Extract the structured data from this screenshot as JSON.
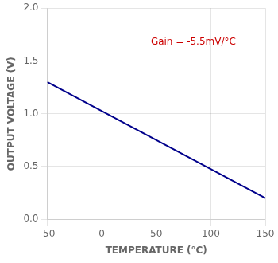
{
  "chart_data": {
    "type": "line",
    "x": [
      -50,
      150
    ],
    "values": [
      1.3,
      0.2
    ],
    "color": "#00008B",
    "xlabel": "TEMPERATURE (°C)",
    "ylabel": "OUTPUT VOLTAGE (V)",
    "xlim": [
      -50,
      150
    ],
    "ylim": [
      0.0,
      2.0
    ],
    "xticks": [
      -50,
      0,
      50,
      100,
      150
    ],
    "yticks": [
      {
        "value": 0,
        "label": "0.0"
      },
      0.5,
      {
        "value": 1,
        "label": "1.0"
      },
      1.5,
      {
        "value": 2,
        "label": "2.0"
      }
    ],
    "annotations": [
      {
        "text": "Gain = -5.5mV/°C",
        "x": 45,
        "y": 1.68,
        "color": "#cc0000"
      }
    ],
    "grid": true
  }
}
